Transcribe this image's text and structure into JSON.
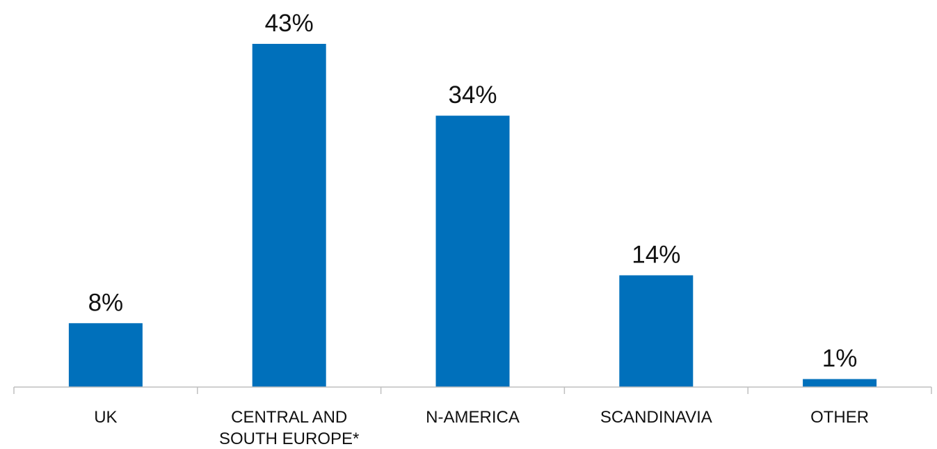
{
  "chart_data": {
    "type": "bar",
    "categories": [
      [
        "UK"
      ],
      [
        "CENTRAL AND",
        "SOUTH EUROPE*"
      ],
      [
        "N-AMERICA"
      ],
      [
        "SCANDINAVIA"
      ],
      [
        "OTHER"
      ]
    ],
    "values": [
      8,
      43,
      34,
      14,
      1
    ],
    "data_labels": [
      "8%",
      "43%",
      "34%",
      "14%",
      "1%"
    ],
    "unit": "%",
    "title": "",
    "xlabel": "",
    "ylabel": "",
    "ylim": [
      0,
      43
    ],
    "grid": false,
    "legend": "none",
    "colors": {
      "bar": "#0070bb",
      "axis": "#bfbfbf",
      "text": "#111111"
    }
  }
}
